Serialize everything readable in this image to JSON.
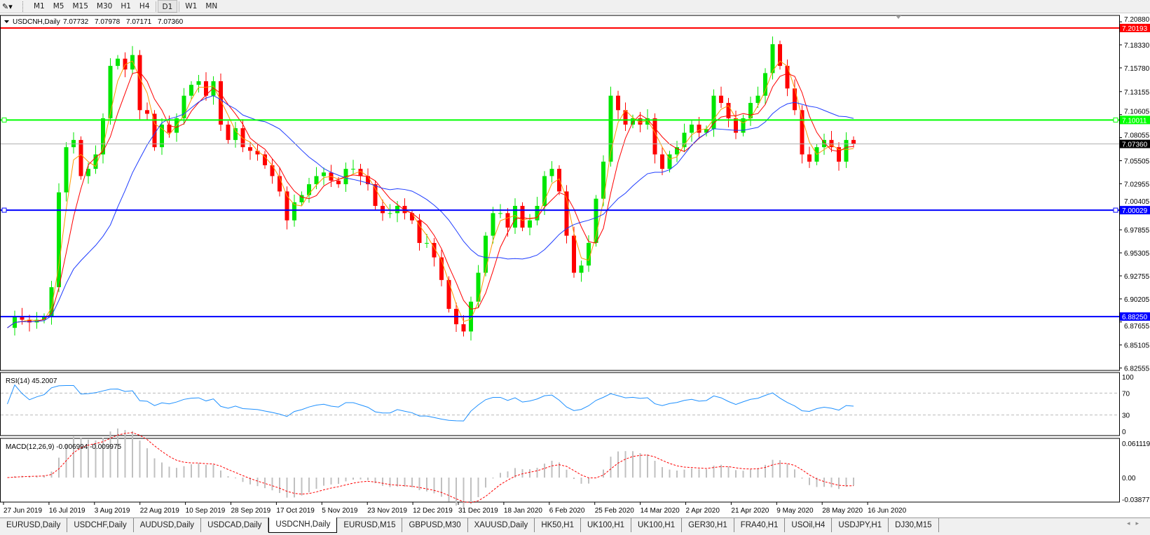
{
  "toolbar": {
    "timeframes": [
      "M1",
      "M5",
      "M15",
      "M30",
      "H1",
      "H4",
      "D1",
      "W1",
      "MN"
    ],
    "active": "D1"
  },
  "header": {
    "symbol": "USDCNH,Daily",
    "open": "7.07732",
    "high": "7.07978",
    "low": "7.07171",
    "close": "7.07360"
  },
  "indicators": {
    "rsi_label": "RSI(14) 45.2007",
    "macd_label": "MACD(12,26,9) -0.006994 -0.009975"
  },
  "tabs": [
    "EURUSD,Daily",
    "USDCHF,Daily",
    "AUDUSD,Daily",
    "USDCAD,Daily",
    "USDCNH,Daily",
    "EURUSD,M15",
    "GBPUSD,M30",
    "XAUUSD,Daily",
    "HK50,H1",
    "UK100,H1",
    "UK100,H1",
    "GER30,H1",
    "FRA40,H1",
    "USOil,H4",
    "USDJPY,H1",
    "DJ30,M15"
  ],
  "active_tab": "USDCNH,Daily",
  "colors": {
    "bull": "#00e600",
    "bear": "#ff0000",
    "ma_fast": "#ff9900",
    "ma_mid": "#ff0000",
    "ma_slow": "#1e3cff",
    "rsi": "#1e90ff",
    "macd_signal": "#ff0000",
    "macd_hist": "#c0c0c0",
    "level_red": "#ff0000",
    "level_green": "#00ff00",
    "level_blue": "#0000ff"
  },
  "chart_data": {
    "type": "candlestick",
    "symbol": "USDCNH",
    "timeframe": "Daily",
    "price_ticks": [
      "7.20880",
      "7.18330",
      "7.15780",
      "7.13155",
      "7.10605",
      "7.08055",
      "7.05505",
      "7.02955",
      "7.00405",
      "6.97855",
      "6.95305",
      "6.92755",
      "6.90205",
      "6.87655",
      "6.85105",
      "6.82555"
    ],
    "ylim": [
      6.82555,
      7.2088
    ],
    "x_ticks": [
      "27 Jun 2019",
      "16 Jul 2019",
      "3 Aug 2019",
      "22 Aug 2019",
      "10 Sep 2019",
      "28 Sep 2019",
      "17 Oct 2019",
      "5 Nov 2019",
      "23 Nov 2019",
      "12 Dec 2019",
      "31 Dec 2019",
      "18 Jan 2020",
      "6 Feb 2020",
      "25 Feb 2020",
      "14 Mar 2020",
      "2 Apr 2020",
      "21 Apr 2020",
      "9 May 2020",
      "28 May 2020",
      "16 Jun 2020"
    ],
    "close_approx": [
      6.87,
      6.882,
      6.879,
      6.876,
      6.879,
      6.882,
      6.915,
      7.02,
      7.07,
      7.078,
      7.038,
      7.046,
      7.062,
      7.102,
      7.16,
      7.168,
      7.156,
      7.172,
      7.111,
      7.107,
      7.07,
      7.095,
      7.086,
      7.102,
      7.127,
      7.139,
      7.143,
      7.127,
      7.143,
      7.095,
      7.078,
      7.091,
      7.07,
      7.066,
      7.062,
      7.05,
      7.038,
      7.021,
      6.989,
      7.009,
      7.017,
      7.029,
      7.038,
      7.042,
      7.033,
      7.029,
      7.046,
      7.046,
      7.038,
      7.029,
      7.005,
      6.997,
      6.997,
      7.005,
      6.997,
      6.989,
      6.964,
      6.964,
      6.948,
      6.923,
      6.891,
      6.874,
      6.866,
      6.899,
      6.931,
      6.972,
      6.997,
      6.997,
      6.981,
      7.005,
      6.981,
      6.989,
      7.005,
      7.038,
      7.046,
      7.021,
      6.972,
      6.931,
      6.939,
      6.964,
      7.013,
      7.054,
      7.127,
      7.111,
      7.095,
      7.102,
      7.095,
      7.102,
      7.062,
      7.046,
      7.062,
      7.07,
      7.086,
      7.095,
      7.086,
      7.09,
      7.127,
      7.119,
      7.102,
      7.086,
      7.102,
      7.119,
      7.127,
      7.152,
      7.184,
      7.16,
      7.135,
      7.111,
      7.062,
      7.054,
      7.07,
      7.078,
      7.07,
      7.054,
      7.078,
      7.0736
    ],
    "levels": [
      {
        "value": "7.20193",
        "color": "red"
      },
      {
        "value": "7.10011",
        "color": "green"
      },
      {
        "value": "7.00029",
        "color": "blue"
      },
      {
        "value": "6.88250",
        "color": "blue"
      }
    ],
    "current_price": "7.07360",
    "rsi": {
      "ticks": [
        "100",
        "70",
        "30",
        "0"
      ],
      "levels": [
        70,
        30
      ]
    },
    "macd": {
      "ticks": [
        "0.061119",
        "0.00",
        "-0.038777"
      ]
    }
  }
}
